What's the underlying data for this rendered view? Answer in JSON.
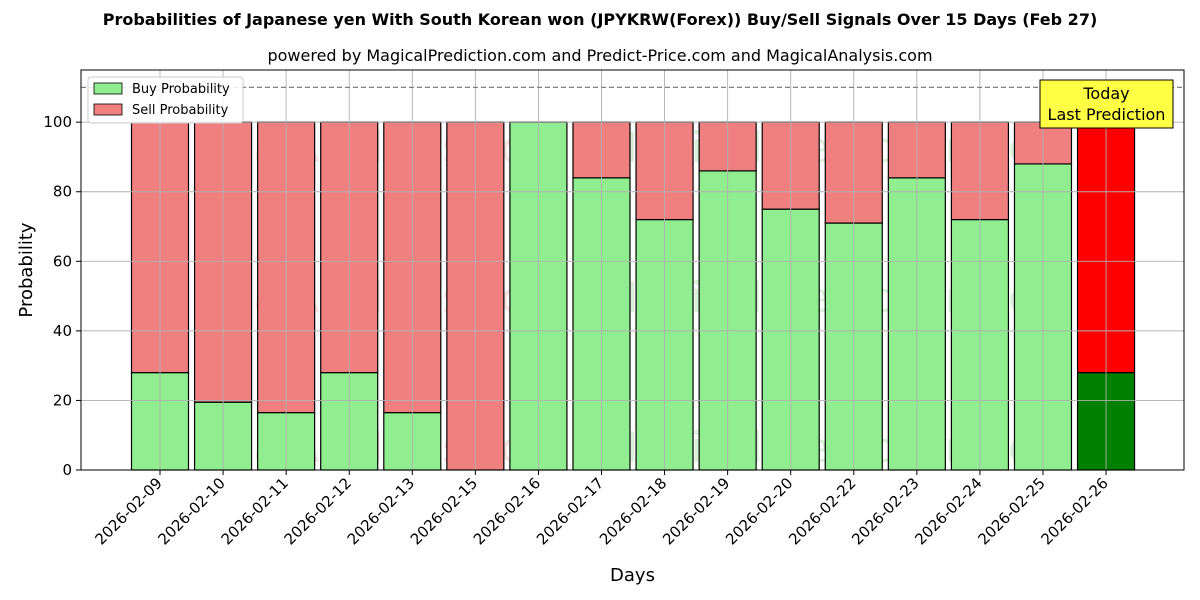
{
  "chart_data": {
    "type": "bar",
    "stacked": true,
    "title": "Probabilities of Japanese yen With South Korean won (JPYKRW(Forex)) Buy/Sell Signals Over 15 Days (Feb 27)",
    "subtitle": "powered by MagicalPrediction.com and Predict-Price.com and MagicalAnalysis.com",
    "xlabel": "Days",
    "ylabel": "Probability",
    "ylim": [
      0,
      115
    ],
    "yticks": [
      0,
      20,
      40,
      60,
      80,
      100
    ],
    "reference_line": 110,
    "grid": true,
    "legend_position": "top-left",
    "categories": [
      "2026-02-09",
      "2026-02-10",
      "2026-02-11",
      "2026-02-12",
      "2026-02-13",
      "2026-02-15",
      "2026-02-16",
      "2026-02-17",
      "2026-02-18",
      "2026-02-19",
      "2026-02-20",
      "2026-02-22",
      "2026-02-23",
      "2026-02-24",
      "2026-02-25",
      "2026-02-26"
    ],
    "series": [
      {
        "name": "Buy Probability",
        "color": "#90ee90",
        "highlight_color": "#008000",
        "values": [
          28,
          19.5,
          16.5,
          28,
          16.5,
          0,
          100,
          84,
          72,
          86,
          75,
          71,
          84,
          72,
          88,
          28
        ]
      },
      {
        "name": "Sell Probability",
        "color": "#f08080",
        "highlight_color": "#ff0000",
        "values": [
          72,
          80.5,
          83.5,
          72,
          83.5,
          100,
          0,
          16,
          28,
          14,
          25,
          29,
          16,
          28,
          12,
          72
        ]
      }
    ],
    "annotation": {
      "line1": "Today",
      "line2": "Last Prediction",
      "color": "#ffff44"
    },
    "watermarks": [
      "MagicalAnalysis.com",
      "MagicalPrediction.com"
    ]
  }
}
